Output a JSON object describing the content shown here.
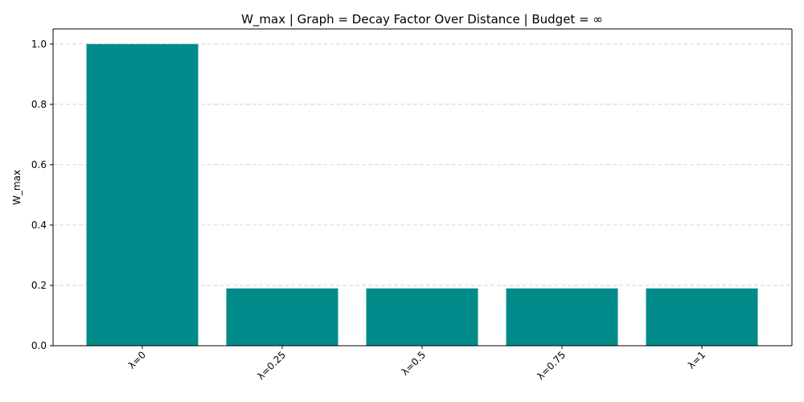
{
  "chart_data": {
    "type": "bar",
    "title": "W_max | Graph = Decay Factor Over Distance | Budget = ∞",
    "xlabel": "",
    "ylabel": "W_max",
    "categories": [
      "λ=0",
      "λ=0.25",
      "λ=0.5",
      "λ=0.75",
      "λ=1"
    ],
    "values": [
      1.0,
      0.19,
      0.19,
      0.19,
      0.19
    ],
    "ylim": [
      0,
      1.05
    ],
    "yticks": [
      0.0,
      0.2,
      0.4,
      0.6,
      0.8,
      1.0
    ],
    "ytick_labels": [
      "0.0",
      "0.2",
      "0.4",
      "0.6",
      "0.8",
      "1.0"
    ],
    "grid": "y-dashed",
    "bar_color": "#008b8a"
  }
}
